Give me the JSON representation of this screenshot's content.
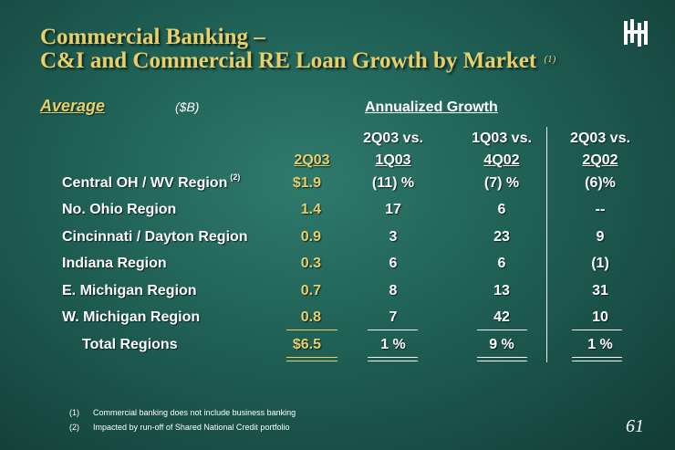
{
  "title": {
    "line1": "Commercial Banking –",
    "line2": "C&I and Commercial RE Loan Growth by Market",
    "note": "(1)"
  },
  "header": {
    "average": "Average",
    "units": "($B)",
    "growth": "Annualized Growth"
  },
  "columns": [
    {
      "line1": "",
      "line2": "2Q03"
    },
    {
      "line1": "2Q03 vs.",
      "line2": "1Q03"
    },
    {
      "line1": "1Q03 vs.",
      "line2": "4Q02"
    },
    {
      "line1": "2Q03 vs.",
      "line2": "2Q02"
    }
  ],
  "rows": [
    {
      "label": "Central OH / WV Region",
      "sup": "(2)",
      "v1": "$1.9",
      "v2": "(11) %",
      "v3": "(7) %",
      "v4": "(6)%"
    },
    {
      "label": "No. Ohio Region",
      "sup": "",
      "v1": "1.4",
      "v2": "17",
      "v3": "6",
      "v4": "--"
    },
    {
      "label": "Cincinnati / Dayton Region",
      "sup": "",
      "v1": "0.9",
      "v2": "3",
      "v3": "23",
      "v4": "9"
    },
    {
      "label": "Indiana Region",
      "sup": "",
      "v1": "0.3",
      "v2": "6",
      "v3": "6",
      "v4": "(1)"
    },
    {
      "label": "E. Michigan Region",
      "sup": "",
      "v1": "0.7",
      "v2": "8",
      "v3": "13",
      "v4": "31"
    },
    {
      "label": "W. Michigan Region",
      "sup": "",
      "v1": "0.8",
      "v2": "7",
      "v3": "42",
      "v4": "10"
    }
  ],
  "total": {
    "label": "Total Regions",
    "v1": "$6.5",
    "v2": "1  %",
    "v3": "9  %",
    "v4": "1 %"
  },
  "footnotes": [
    {
      "num": "(1)",
      "text": "Commercial banking does not include business banking"
    },
    {
      "num": "(2)",
      "text": "Impacted by run-off of Shared National Credit portfolio"
    }
  ],
  "page_number": "61",
  "colors": {
    "gold": "#e8cf6a",
    "background": "#1f5f54"
  }
}
